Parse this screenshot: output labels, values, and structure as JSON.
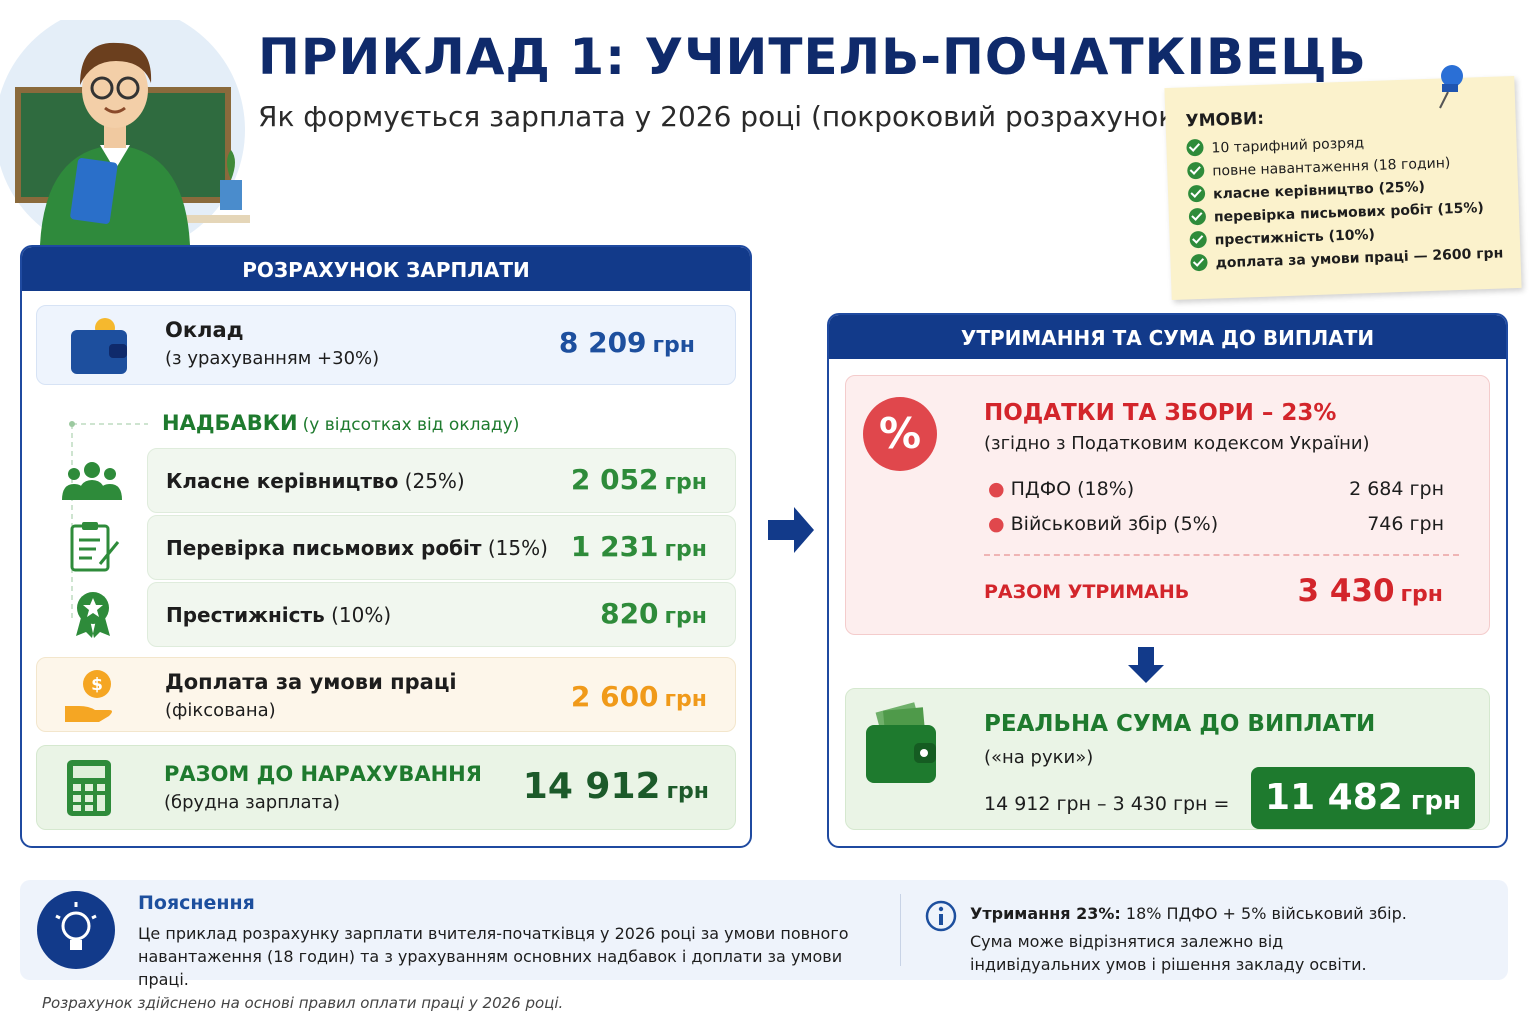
{
  "header": {
    "title": "ПРИКЛАД 1: УЧИТЕЛЬ-ПОЧАТКІВЕЦЬ",
    "subtitle": "Як формується зарплата у 2026 році (покроковий розрахунок)"
  },
  "conditions": {
    "title": "УМОВИ:",
    "items": [
      "10 тарифний розряд",
      "повне навантаження (18 годин)",
      "класне керівництво (25%)",
      "перевірка письмових робіт (15%)",
      "престижність (10%)",
      "доплата за умови праці — 2600 грн"
    ]
  },
  "calculation": {
    "title": "РОЗРАХУНОК ЗАРПЛАТИ",
    "salary": {
      "label": "Оклад",
      "note": "(з урахуванням +30%)",
      "amount": "8 209",
      "unit": "грн"
    },
    "allowances": {
      "title": "НАДБАВКИ",
      "note": "(у відсотках від окладу)",
      "items": [
        {
          "name": "Класне керівництво",
          "pct": "(25%)",
          "amount": "2 052",
          "unit": "грн"
        },
        {
          "name": "Перевірка письмових робіт",
          "pct": "(15%)",
          "amount": "1 231",
          "unit": "грн"
        },
        {
          "name": "Престижність",
          "pct": "(10%)",
          "amount": "820",
          "unit": "грн"
        }
      ]
    },
    "extra": {
      "label": "Доплата за умови праці",
      "note": "(фіксована)",
      "amount": "2 600",
      "unit": "грн"
    },
    "total": {
      "label": "РАЗОМ ДО НАРАХУВАННЯ",
      "note": "(брудна зарплата)",
      "amount": "14 912",
      "unit": "грн"
    }
  },
  "deductions": {
    "title": "УТРИМАННЯ ТА СУМА ДО ВИПЛАТИ",
    "taxes": {
      "title": "ПОДАТКИ ТА ЗБОРИ – 23%",
      "note": "(згідно з Податковим кодексом України)",
      "items": [
        {
          "name": "ПДФО (18%)",
          "amount": "2 684",
          "unit": "грн"
        },
        {
          "name": "Військовий збір (5%)",
          "amount": "746",
          "unit": "грн"
        }
      ],
      "total_label": "РАЗОМ УТРИМАНЬ",
      "total_amount": "3 430",
      "total_unit": "грн"
    },
    "net": {
      "title": "РЕАЛЬНА СУМА ДО ВИПЛАТИ",
      "note": "(«на руки»)",
      "formula": "14 912 грн – 3 430 грн =",
      "amount": "11 482",
      "unit": "грн"
    }
  },
  "explanation": {
    "title": "Пояснення",
    "text": "Це приклад розрахунку зарплати вчителя-початківця у 2026 році за умови повного навантаження (18 годин) та з урахуванням основних надбавок і доплати за умови праці.",
    "info_bold": "Утримання 23%:",
    "info_text": "18% ПДФО + 5% військовий збір.",
    "info_note": "Сума може відрізнятися залежно від індивідуальних умов і рішення закладу освіти."
  },
  "footer": "Розрахунок здійснено на основі правил оплати праці у 2026 році."
}
